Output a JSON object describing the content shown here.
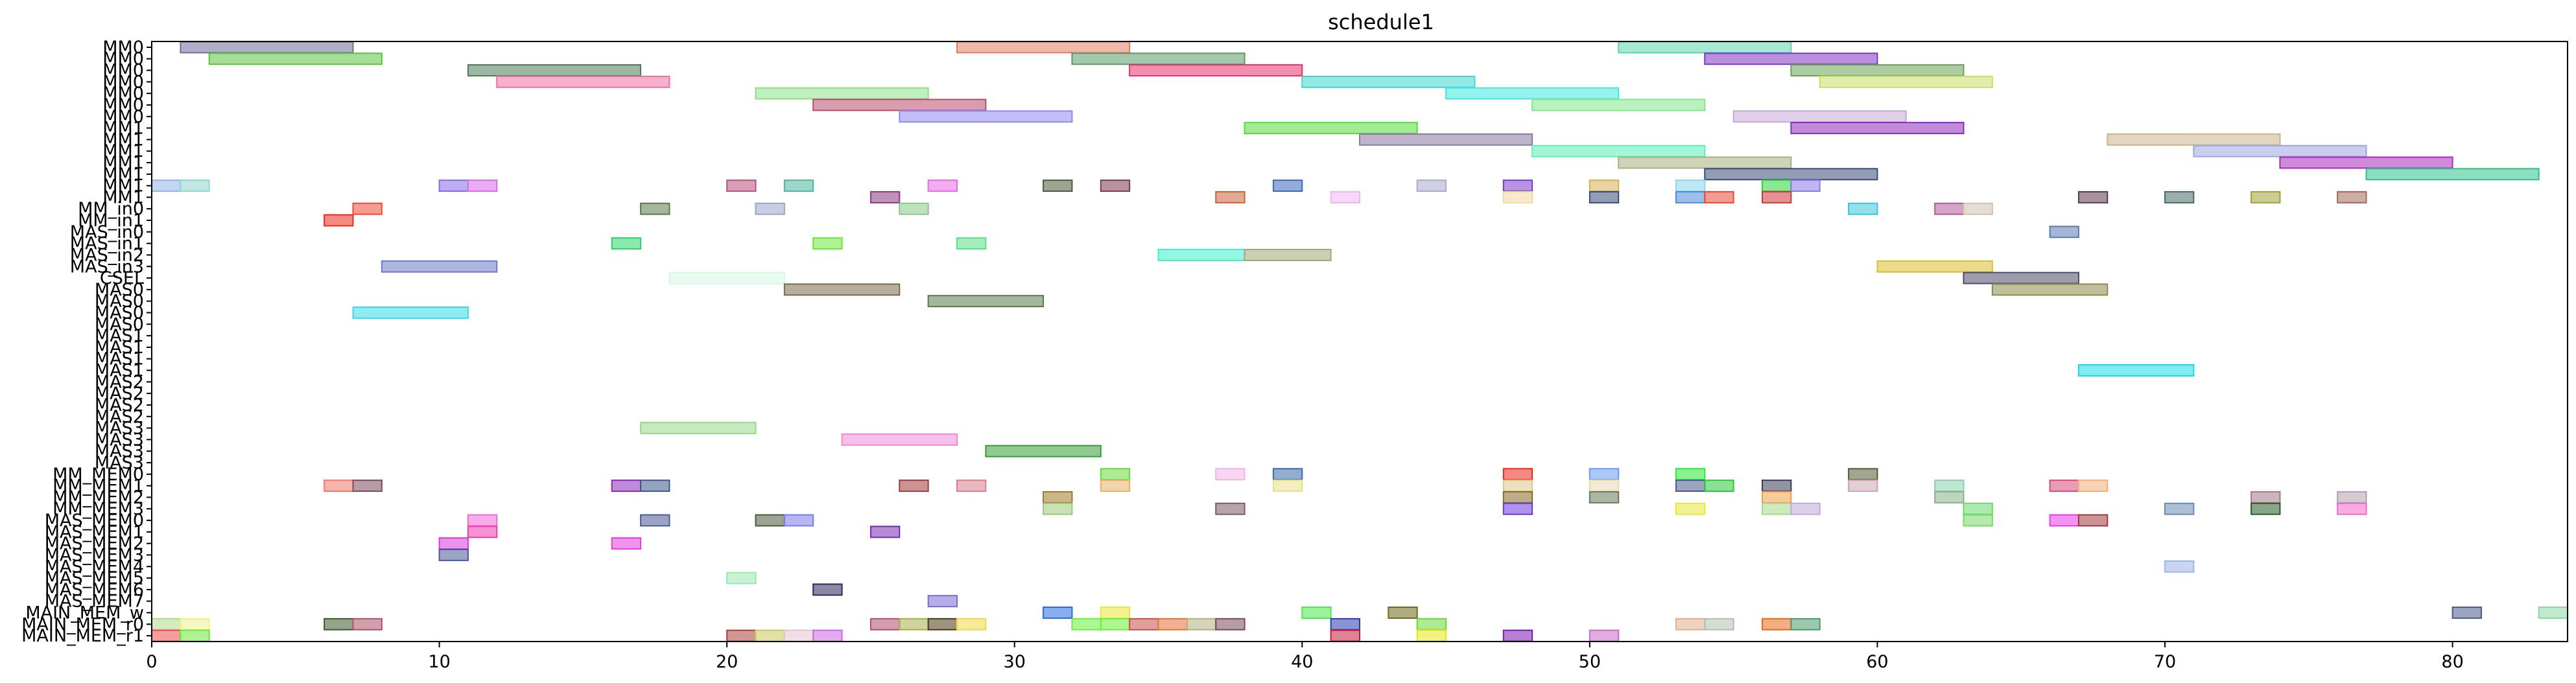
{
  "chart_data": {
    "type": "gantt",
    "title": "schedule1",
    "xlabel": "",
    "ylabel": "",
    "xlim": [
      0,
      84
    ],
    "x_ticks": [
      0,
      10,
      20,
      30,
      40,
      50,
      60,
      70,
      80
    ],
    "grid": false,
    "rows": [
      "MM0",
      "MM0",
      "MM0",
      "MM0",
      "MM0",
      "MM0",
      "MM0",
      "MM1",
      "MM1",
      "MM1",
      "MM1",
      "MM1",
      "MM1",
      "MM1",
      "MM_in0",
      "MM_in1",
      "MAS_in0",
      "MAS_in1",
      "MAS_in2",
      "MAS_in3",
      "CSEL",
      "MAS0",
      "MAS0",
      "MAS0",
      "MAS0",
      "MAS1",
      "MAS1",
      "MAS1",
      "MAS1",
      "MAS2",
      "MAS2",
      "MAS2",
      "MAS2",
      "MAS3",
      "MAS3",
      "MAS3",
      "MAS3",
      "MM_MEM0",
      "MM_MEM1",
      "MM_MEM2",
      "MM_MEM3",
      "MAS_MEM0",
      "MAS_MEM1",
      "MAS_MEM2",
      "MAS_MEM3",
      "MAS_MEM4",
      "MAS_MEM5",
      "MAS_MEM6",
      "MAS_MEM7",
      "MAIN_MEM_w",
      "MAIN_MEM_r0",
      "MAIN_MEM_r1"
    ],
    "tasks": [
      {
        "row": 0,
        "start": 1,
        "end": 7,
        "color": "#6e6e9a"
      },
      {
        "row": 0,
        "start": 28,
        "end": 34,
        "color": "#e07f60"
      },
      {
        "row": 0,
        "start": 51,
        "end": 57,
        "color": "#5bd6b0"
      },
      {
        "row": 1,
        "start": 2,
        "end": 8,
        "color": "#5bc23f"
      },
      {
        "row": 1,
        "start": 32,
        "end": 38,
        "color": "#5a9a66"
      },
      {
        "row": 1,
        "start": 54,
        "end": 60,
        "color": "#7f35c2"
      },
      {
        "row": 2,
        "start": 11,
        "end": 17,
        "color": "#4e7a5a"
      },
      {
        "row": 2,
        "start": 34,
        "end": 40,
        "color": "#e8326e"
      },
      {
        "row": 2,
        "start": 57,
        "end": 63,
        "color": "#6aa153"
      },
      {
        "row": 3,
        "start": 12,
        "end": 18,
        "color": "#ee6fa0"
      },
      {
        "row": 3,
        "start": 40,
        "end": 46,
        "color": "#3fd6ce"
      },
      {
        "row": 3,
        "start": 58,
        "end": 64,
        "color": "#c8df66"
      },
      {
        "row": 4,
        "start": 21,
        "end": 27,
        "color": "#8ee088"
      },
      {
        "row": 4,
        "start": 45,
        "end": 51,
        "color": "#3fe8e0"
      },
      {
        "row": 5,
        "start": 23,
        "end": 29,
        "color": "#b84e6e"
      },
      {
        "row": 5,
        "start": 48,
        "end": 54,
        "color": "#7fe88a"
      },
      {
        "row": 6,
        "start": 26,
        "end": 32,
        "color": "#8f8af0"
      },
      {
        "row": 6,
        "start": 55,
        "end": 61,
        "color": "#c9a6d4"
      },
      {
        "row": 7,
        "start": 38,
        "end": 44,
        "color": "#5ad83a"
      },
      {
        "row": 7,
        "start": 57,
        "end": 63,
        "color": "#8a2dbf"
      },
      {
        "row": 8,
        "start": 42,
        "end": 48,
        "color": "#8a789e"
      },
      {
        "row": 8,
        "start": 68,
        "end": 74,
        "color": "#c9b48a"
      },
      {
        "row": 9,
        "start": 48,
        "end": 54,
        "color": "#5af0b4"
      },
      {
        "row": 9,
        "start": 71,
        "end": 77,
        "color": "#9aa6dc"
      },
      {
        "row": 10,
        "start": 51,
        "end": 57,
        "color": "#a8b07f"
      },
      {
        "row": 10,
        "start": 74,
        "end": 80,
        "color": "#aa2abc"
      },
      {
        "row": 11,
        "start": 54,
        "end": 60,
        "color": "#3b4a78"
      },
      {
        "row": 11,
        "start": 77,
        "end": 83,
        "color": "#2bc48a"
      },
      {
        "row": 12,
        "start": 0,
        "end": 1,
        "color": "#8fb4e8"
      },
      {
        "row": 12,
        "start": 1,
        "end": 2,
        "color": "#8ed6d0"
      },
      {
        "row": 12,
        "start": 10,
        "end": 11,
        "color": "#8a6ae8"
      },
      {
        "row": 12,
        "start": 11,
        "end": 12,
        "color": "#d86ae8"
      },
      {
        "row": 12,
        "start": 20,
        "end": 21,
        "color": "#b8527e"
      },
      {
        "row": 12,
        "start": 22,
        "end": 23,
        "color": "#4fb49e"
      },
      {
        "row": 12,
        "start": 27,
        "end": 28,
        "color": "#e86ae8"
      },
      {
        "row": 12,
        "start": 31,
        "end": 32,
        "color": "#4e5a3a"
      },
      {
        "row": 12,
        "start": 33,
        "end": 34,
        "color": "#7a3a50"
      },
      {
        "row": 12,
        "start": 39,
        "end": 40,
        "color": "#3a6ab8"
      },
      {
        "row": 12,
        "start": 44,
        "end": 45,
        "color": "#aaaacc"
      },
      {
        "row": 12,
        "start": 47,
        "end": 48,
        "color": "#7a3ad0"
      },
      {
        "row": 12,
        "start": 50,
        "end": 51,
        "color": "#d4b050"
      },
      {
        "row": 12,
        "start": 53,
        "end": 54,
        "color": "#8ad6f0"
      },
      {
        "row": 12,
        "start": 56,
        "end": 57,
        "color": "#2ad43a"
      },
      {
        "row": 12,
        "start": 57,
        "end": 58,
        "color": "#8a7ae8"
      },
      {
        "row": 13,
        "start": 25,
        "end": 26,
        "color": "#8a3a7e"
      },
      {
        "row": 13,
        "start": 37,
        "end": 38,
        "color": "#c8643a"
      },
      {
        "row": 13,
        "start": 41,
        "end": 42,
        "color": "#f0b4f0"
      },
      {
        "row": 13,
        "start": 47,
        "end": 48,
        "color": "#f0d8a0"
      },
      {
        "row": 13,
        "start": 50,
        "end": 51,
        "color": "#3a4a78"
      },
      {
        "row": 13,
        "start": 53,
        "end": 54,
        "color": "#4a8ad8"
      },
      {
        "row": 13,
        "start": 54,
        "end": 55,
        "color": "#e84a3a"
      },
      {
        "row": 13,
        "start": 56,
        "end": 57,
        "color": "#c83a3a"
      },
      {
        "row": 13,
        "start": 67,
        "end": 68,
        "color": "#5a3a4a"
      },
      {
        "row": 13,
        "start": 70,
        "end": 71,
        "color": "#4a6a6a"
      },
      {
        "row": 13,
        "start": 73,
        "end": 74,
        "color": "#a0a03a"
      },
      {
        "row": 13,
        "start": 76,
        "end": 77,
        "color": "#a06a5a"
      },
      {
        "row": 14,
        "start": 7,
        "end": 8,
        "color": "#f04a3a"
      },
      {
        "row": 14,
        "start": 17,
        "end": 18,
        "color": "#5a7a4a"
      },
      {
        "row": 14,
        "start": 21,
        "end": 22,
        "color": "#9aa6c8"
      },
      {
        "row": 14,
        "start": 26,
        "end": 27,
        "color": "#8ac88a"
      },
      {
        "row": 14,
        "start": 59,
        "end": 60,
        "color": "#3ac4d8"
      },
      {
        "row": 14,
        "start": 62,
        "end": 63,
        "color": "#b05a9a"
      },
      {
        "row": 14,
        "start": 63,
        "end": 64,
        "color": "#d0c0b0"
      },
      {
        "row": 15,
        "start": 6,
        "end": 7,
        "color": "#f0281e"
      },
      {
        "row": 16,
        "start": 66,
        "end": 67,
        "color": "#5a7ab0"
      },
      {
        "row": 17,
        "start": 16,
        "end": 17,
        "color": "#2ad46a"
      },
      {
        "row": 17,
        "start": 23,
        "end": 24,
        "color": "#6ae83a"
      },
      {
        "row": 17,
        "start": 28,
        "end": 29,
        "color": "#5ae088"
      },
      {
        "row": 18,
        "start": 35,
        "end": 38,
        "color": "#3af0c8"
      },
      {
        "row": 18,
        "start": 38,
        "end": 41,
        "color": "#a0a87a"
      },
      {
        "row": 19,
        "start": 8,
        "end": 12,
        "color": "#6a7ac8"
      },
      {
        "row": 19,
        "start": 60,
        "end": 64,
        "color": "#d8c02a"
      },
      {
        "row": 20,
        "start": 18,
        "end": 22,
        "color": "#d4f8e0"
      },
      {
        "row": 20,
        "start": 63,
        "end": 67,
        "color": "#4a4a6a"
      },
      {
        "row": 21,
        "start": 22,
        "end": 26,
        "color": "#7a6a4a"
      },
      {
        "row": 21,
        "start": 64,
        "end": 68,
        "color": "#8a8a4a"
      },
      {
        "row": 22,
        "start": 27,
        "end": 31,
        "color": "#5a7a4a"
      },
      {
        "row": 23,
        "start": 7,
        "end": 11,
        "color": "#3adae8"
      },
      {
        "row": 28,
        "start": 67,
        "end": 71,
        "color": "#1ad8e8"
      },
      {
        "row": 33,
        "start": 17,
        "end": 21,
        "color": "#9ad88a"
      },
      {
        "row": 34,
        "start": 24,
        "end": 28,
        "color": "#f08ad8"
      },
      {
        "row": 35,
        "start": 29,
        "end": 33,
        "color": "#3a9a3a"
      },
      {
        "row": 37,
        "start": 33,
        "end": 34,
        "color": "#6ad83a"
      },
      {
        "row": 37,
        "start": 37,
        "end": 38,
        "color": "#f0b4e8"
      },
      {
        "row": 37,
        "start": 39,
        "end": 40,
        "color": "#3a6aa8"
      },
      {
        "row": 37,
        "start": 47,
        "end": 48,
        "color": "#e8281e"
      },
      {
        "row": 37,
        "start": 50,
        "end": 51,
        "color": "#6a9af0"
      },
      {
        "row": 37,
        "start": 53,
        "end": 54,
        "color": "#2ae83a"
      },
      {
        "row": 37,
        "start": 59,
        "end": 60,
        "color": "#5a5a3a"
      },
      {
        "row": 38,
        "start": 6,
        "end": 7,
        "color": "#f07a6a"
      },
      {
        "row": 38,
        "start": 7,
        "end": 8,
        "color": "#7a4a5a"
      },
      {
        "row": 38,
        "start": 16,
        "end": 17,
        "color": "#8a2ab8"
      },
      {
        "row": 38,
        "start": 17,
        "end": 18,
        "color": "#3a5a8a"
      },
      {
        "row": 38,
        "start": 26,
        "end": 27,
        "color": "#a03a3a"
      },
      {
        "row": 38,
        "start": 28,
        "end": 29,
        "color": "#d8808a"
      },
      {
        "row": 38,
        "start": 33,
        "end": 34,
        "color": "#e8b06a"
      },
      {
        "row": 38,
        "start": 39,
        "end": 40,
        "color": "#e8e08a"
      },
      {
        "row": 38,
        "start": 47,
        "end": 48,
        "color": "#d8c88a"
      },
      {
        "row": 38,
        "start": 50,
        "end": 51,
        "color": "#e8d8b0"
      },
      {
        "row": 38,
        "start": 53,
        "end": 54,
        "color": "#4a5a8a"
      },
      {
        "row": 38,
        "start": 54,
        "end": 55,
        "color": "#2ac83a"
      },
      {
        "row": 38,
        "start": 56,
        "end": 57,
        "color": "#3a3a5a"
      },
      {
        "row": 38,
        "start": 59,
        "end": 60,
        "color": "#c8a8b0"
      },
      {
        "row": 38,
        "start": 62,
        "end": 63,
        "color": "#8ad0b0"
      },
      {
        "row": 38,
        "start": 66,
        "end": 67,
        "color": "#d84a7a"
      },
      {
        "row": 38,
        "start": 67,
        "end": 68,
        "color": "#f0b07a"
      },
      {
        "row": 39,
        "start": 31,
        "end": 32,
        "color": "#a07a2a"
      },
      {
        "row": 39,
        "start": 47,
        "end": 48,
        "color": "#8a6a2a"
      },
      {
        "row": 39,
        "start": 50,
        "end": 51,
        "color": "#6a7a5a"
      },
      {
        "row": 39,
        "start": 56,
        "end": 57,
        "color": "#f0a04a"
      },
      {
        "row": 39,
        "start": 62,
        "end": 63,
        "color": "#8ab08a"
      },
      {
        "row": 39,
        "start": 73,
        "end": 74,
        "color": "#a07a8a"
      },
      {
        "row": 39,
        "start": 76,
        "end": 77,
        "color": "#b0a0b0"
      },
      {
        "row": 40,
        "start": 31,
        "end": 32,
        "color": "#9ac87a"
      },
      {
        "row": 40,
        "start": 37,
        "end": 38,
        "color": "#7a5a6a"
      },
      {
        "row": 40,
        "start": 47,
        "end": 48,
        "color": "#6a3ad8"
      },
      {
        "row": 40,
        "start": 53,
        "end": 54,
        "color": "#e8e83a"
      },
      {
        "row": 40,
        "start": 56,
        "end": 57,
        "color": "#a8d88a"
      },
      {
        "row": 40,
        "start": 57,
        "end": 58,
        "color": "#c0a8d8"
      },
      {
        "row": 40,
        "start": 63,
        "end": 64,
        "color": "#6ad86a"
      },
      {
        "row": 40,
        "start": 70,
        "end": 71,
        "color": "#6a8ab0"
      },
      {
        "row": 40,
        "start": 73,
        "end": 74,
        "color": "#2a5a2a"
      },
      {
        "row": 40,
        "start": 76,
        "end": 77,
        "color": "#f06ac8"
      },
      {
        "row": 41,
        "start": 11,
        "end": 12,
        "color": "#f06ad8"
      },
      {
        "row": 41,
        "start": 17,
        "end": 18,
        "color": "#4a5a98"
      },
      {
        "row": 41,
        "start": 21,
        "end": 22,
        "color": "#4a5a3a"
      },
      {
        "row": 41,
        "start": 22,
        "end": 23,
        "color": "#7a7af0"
      },
      {
        "row": 41,
        "start": 63,
        "end": 64,
        "color": "#7ad86a"
      },
      {
        "row": 41,
        "start": 66,
        "end": 67,
        "color": "#e83ae8"
      },
      {
        "row": 41,
        "start": 67,
        "end": 68,
        "color": "#a03a3a"
      },
      {
        "row": 42,
        "start": 11,
        "end": 12,
        "color": "#f03ab0"
      },
      {
        "row": 42,
        "start": 25,
        "end": 26,
        "color": "#7a2ab0"
      },
      {
        "row": 43,
        "start": 10,
        "end": 11,
        "color": "#d83ad8"
      },
      {
        "row": 43,
        "start": 16,
        "end": 17,
        "color": "#e83ae0"
      },
      {
        "row": 44,
        "start": 10,
        "end": 11,
        "color": "#4a5a98"
      },
      {
        "row": 45,
        "start": 70,
        "end": 71,
        "color": "#9ab4e8"
      },
      {
        "row": 46,
        "start": 20,
        "end": 21,
        "color": "#9ae8b0"
      },
      {
        "row": 47,
        "start": 23,
        "end": 24,
        "color": "#2a2a5a"
      },
      {
        "row": 48,
        "start": 27,
        "end": 28,
        "color": "#7a6ad8"
      },
      {
        "row": 49,
        "start": 31,
        "end": 32,
        "color": "#2a6ae0"
      },
      {
        "row": 49,
        "start": 33,
        "end": 34,
        "color": "#e8e83a"
      },
      {
        "row": 49,
        "start": 40,
        "end": 41,
        "color": "#4ae84a"
      },
      {
        "row": 49,
        "start": 43,
        "end": 44,
        "color": "#6a6a1a"
      },
      {
        "row": 49,
        "start": 80,
        "end": 81,
        "color": "#4a5a8a"
      },
      {
        "row": 49,
        "start": 83,
        "end": 84,
        "color": "#8ad8a0"
      },
      {
        "row": 50,
        "start": 0,
        "end": 1,
        "color": "#b0d88a"
      },
      {
        "row": 50,
        "start": 1,
        "end": 2,
        "color": "#f0f08a"
      },
      {
        "row": 50,
        "start": 6,
        "end": 7,
        "color": "#3a5a2a"
      },
      {
        "row": 50,
        "start": 7,
        "end": 8,
        "color": "#b0506a"
      },
      {
        "row": 50,
        "start": 25,
        "end": 26,
        "color": "#b0506a"
      },
      {
        "row": 50,
        "start": 26,
        "end": 27,
        "color": "#a8b04a"
      },
      {
        "row": 50,
        "start": 27,
        "end": 28,
        "color": "#4a3a1a"
      },
      {
        "row": 50,
        "start": 28,
        "end": 29,
        "color": "#f0d84a"
      },
      {
        "row": 50,
        "start": 32,
        "end": 33,
        "color": "#6af03a"
      },
      {
        "row": 50,
        "start": 33,
        "end": 34,
        "color": "#6af03a"
      },
      {
        "row": 50,
        "start": 34,
        "end": 35,
        "color": "#c8504a"
      },
      {
        "row": 50,
        "start": 35,
        "end": 36,
        "color": "#e8703a"
      },
      {
        "row": 50,
        "start": 36,
        "end": 37,
        "color": "#b0b080"
      },
      {
        "row": 50,
        "start": 37,
        "end": 38,
        "color": "#7a4a5a"
      },
      {
        "row": 50,
        "start": 41,
        "end": 42,
        "color": "#2a3ab0"
      },
      {
        "row": 50,
        "start": 44,
        "end": 45,
        "color": "#6ad83a"
      },
      {
        "row": 50,
        "start": 53,
        "end": 54,
        "color": "#e0b08a"
      },
      {
        "row": 50,
        "start": 54,
        "end": 55,
        "color": "#b0c0b0"
      },
      {
        "row": 50,
        "start": 56,
        "end": 57,
        "color": "#e86a1a"
      },
      {
        "row": 50,
        "start": 57,
        "end": 58,
        "color": "#4a9a6a"
      },
      {
        "row": 51,
        "start": 0,
        "end": 1,
        "color": "#f04a4a"
      },
      {
        "row": 51,
        "start": 1,
        "end": 2,
        "color": "#6ae83a"
      },
      {
        "row": 51,
        "start": 20,
        "end": 21,
        "color": "#a8403a"
      },
      {
        "row": 51,
        "start": 21,
        "end": 22,
        "color": "#c8c85a"
      },
      {
        "row": 51,
        "start": 22,
        "end": 23,
        "color": "#e8c0d0"
      },
      {
        "row": 51,
        "start": 23,
        "end": 24,
        "color": "#c86ae0"
      },
      {
        "row": 51,
        "start": 41,
        "end": 42,
        "color": "#c81a3a"
      },
      {
        "row": 51,
        "start": 44,
        "end": 45,
        "color": "#e8e81a"
      },
      {
        "row": 51,
        "start": 47,
        "end": 48,
        "color": "#7a1ab0"
      },
      {
        "row": 51,
        "start": 50,
        "end": 51,
        "color": "#c86ac8"
      }
    ]
  }
}
